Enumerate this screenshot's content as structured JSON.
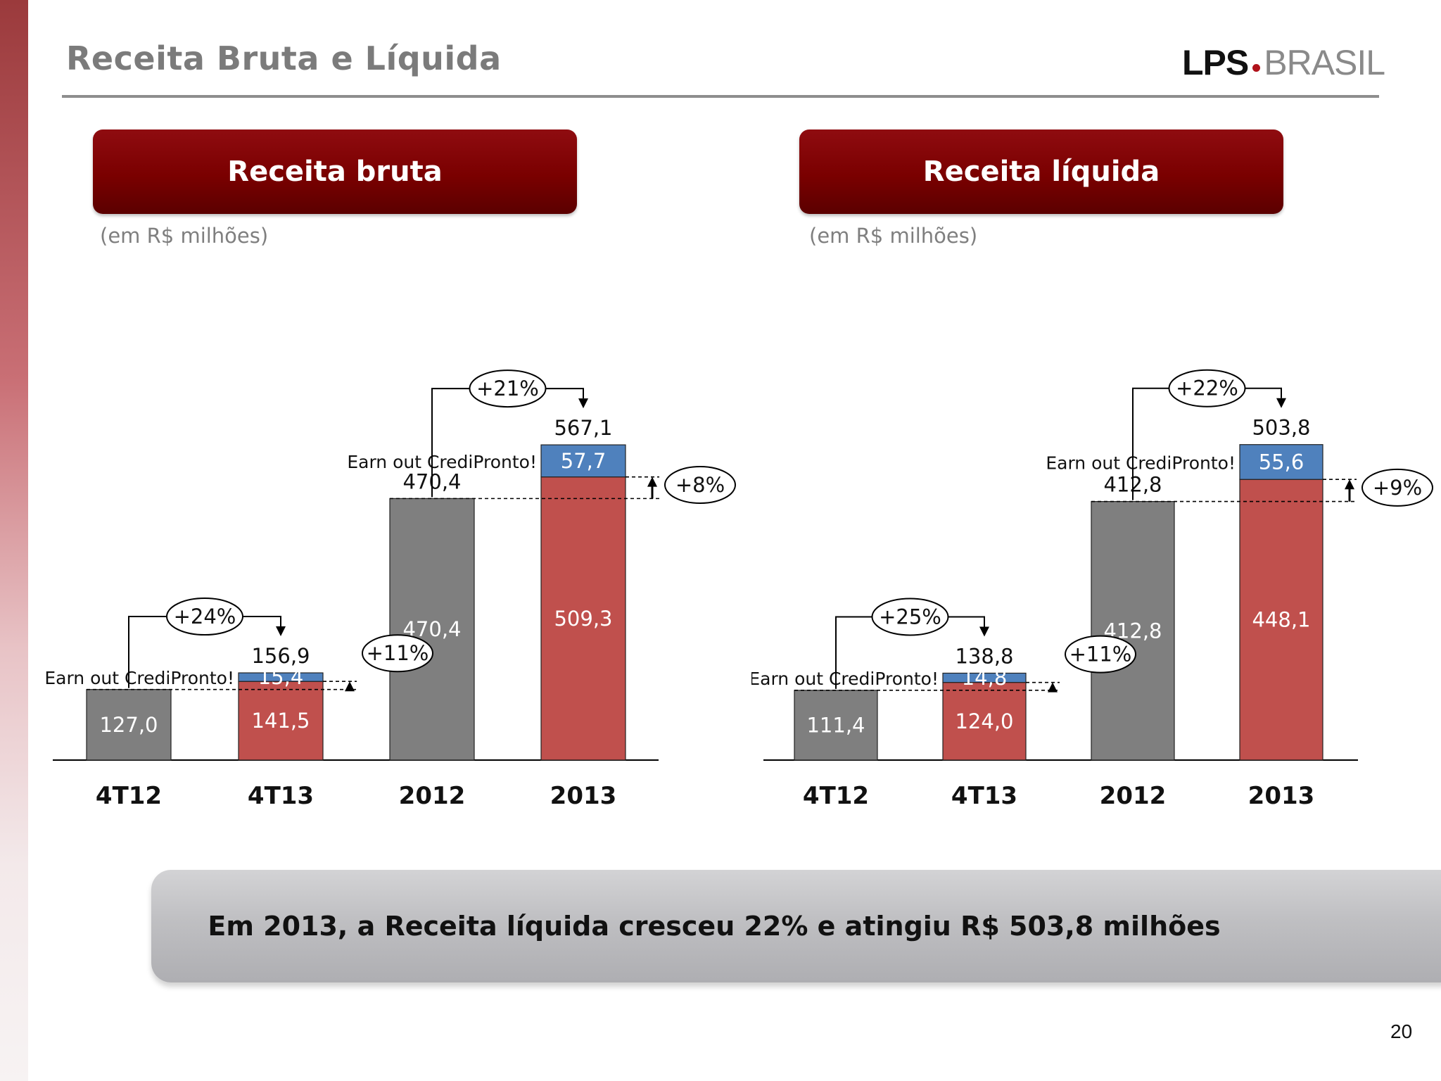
{
  "title": "Receita Bruta e Líquida",
  "logo": {
    "part1": "LPS",
    "part2": "BRASIL"
  },
  "summary": "Em 2013, a Receita líquida cresceu 22% e atingiu R$ 503,8 milhões",
  "page_number": "20",
  "colors": {
    "gray_bar": "#7f7f7f",
    "red_bar": "#c0504d",
    "blue_bar": "#4f81bd",
    "header": "#7a0000"
  },
  "chart_data": [
    {
      "type": "bar",
      "title": "Receita bruta",
      "subtitle": "(em R$ milhões)",
      "categories": [
        "4T12",
        "4T13",
        "2012",
        "2013"
      ],
      "series": [
        {
          "name": "",
          "values": [
            127.0,
            141.5,
            470.4,
            509.3
          ],
          "labels": [
            "127,0",
            "141,5",
            "470,4",
            "509,3"
          ]
        },
        {
          "name": "Earn out CrediPronto!",
          "values": [
            0,
            15.4,
            0,
            57.7
          ],
          "labels": [
            "",
            "15,4",
            "",
            "57,7"
          ]
        }
      ],
      "totals": [
        "",
        "156,9",
        "470,4",
        "567,1"
      ],
      "earn_out_label": "Earn out CrediPronto!",
      "growth": {
        "quarter_total": "+24%",
        "quarter_organic": "+11%",
        "year_total": "+21%",
        "year_organic": "+8%"
      }
    },
    {
      "type": "bar",
      "title": "Receita líquida",
      "subtitle": "(em R$ milhões)",
      "categories": [
        "4T12",
        "4T13",
        "2012",
        "2013"
      ],
      "series": [
        {
          "name": "",
          "values": [
            111.4,
            124.0,
            412.8,
            448.1
          ],
          "labels": [
            "111,4",
            "124,0",
            "412,8",
            "448,1"
          ]
        },
        {
          "name": "Earn out CrediPronto!",
          "values": [
            0,
            14.8,
            0,
            55.6
          ],
          "labels": [
            "",
            "14,8",
            "",
            "55,6"
          ]
        }
      ],
      "totals": [
        "",
        "138,8",
        "412,8",
        "503,8"
      ],
      "earn_out_label": "Earn out CrediPronto!",
      "growth": {
        "quarter_total": "+25%",
        "quarter_organic": "+11%",
        "year_total": "+22%",
        "year_organic": "+9%"
      }
    }
  ]
}
